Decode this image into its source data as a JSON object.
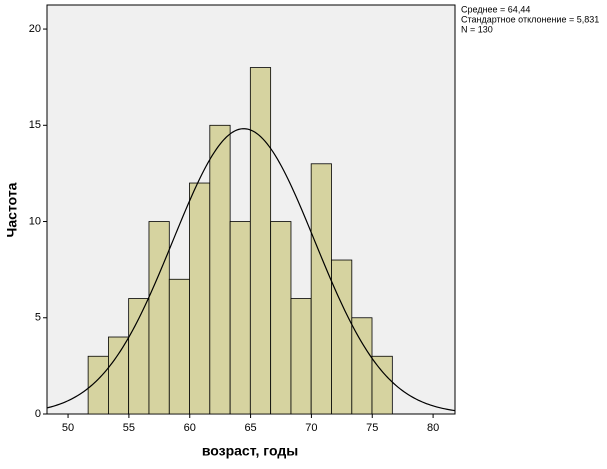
{
  "chart_data": {
    "type": "histogram",
    "xlabel": "возраст, годы",
    "ylabel": "Частота",
    "bins": [
      51.65,
      53.32,
      54.98,
      56.65,
      58.32,
      59.98,
      61.65,
      63.32,
      64.98,
      66.65,
      68.32,
      69.98,
      71.65,
      73.32,
      74.98,
      76.65
    ],
    "values": [
      3,
      4,
      6,
      10,
      7,
      12,
      15,
      10,
      18,
      10,
      6,
      13,
      8,
      5,
      3
    ],
    "color": "#d6d3a0",
    "xlim": [
      48.27,
      81.8
    ],
    "xticks": [
      50,
      55,
      60,
      65,
      70,
      75,
      80
    ],
    "ylim": [
      0,
      21.25
    ],
    "yticks": [
      0,
      5,
      10,
      15,
      20
    ],
    "stats": [
      {
        "value": 64.44,
        "label": "Среднее = 64,44"
      },
      {
        "value": 5.831,
        "label": "Стандартное отклонение = 5,831"
      },
      {
        "value": 130,
        "label": "N = 130"
      }
    ]
  }
}
